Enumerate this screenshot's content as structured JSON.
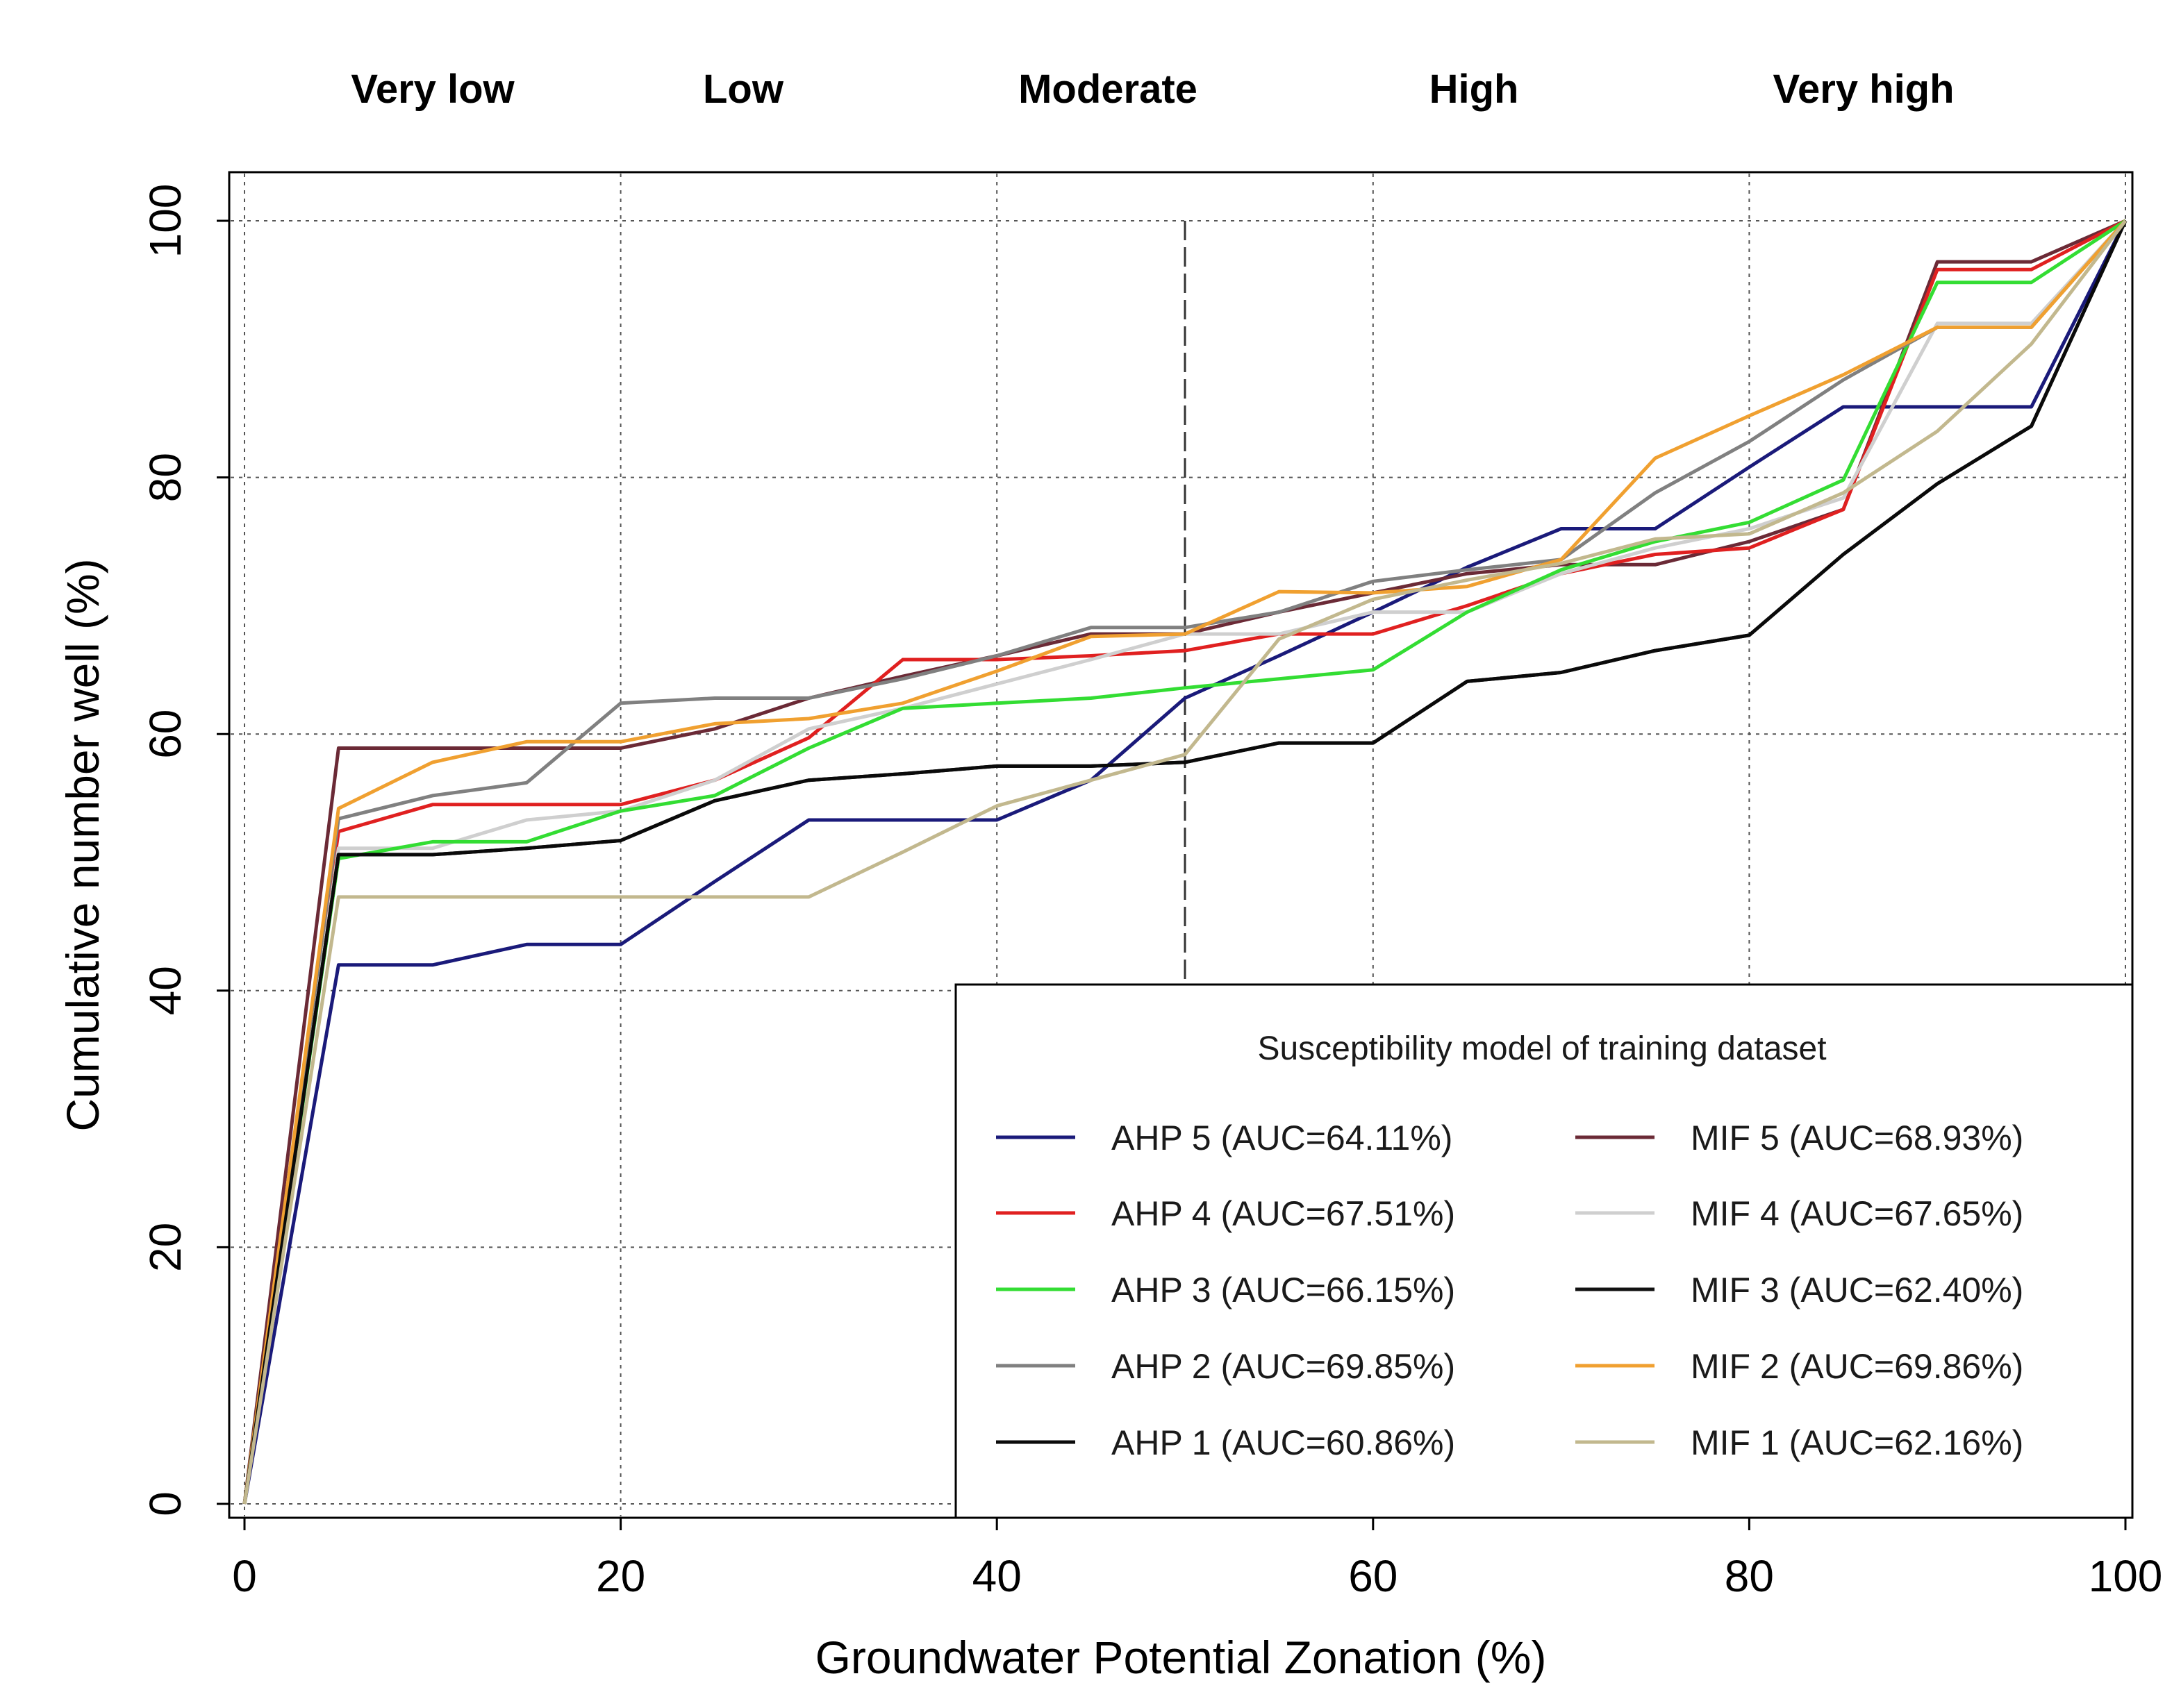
{
  "chart_data": {
    "type": "line",
    "xlabel": "Groundwater Potential Zonation (%)",
    "ylabel": "Cumulative number well (%)",
    "xlim": [
      0,
      100
    ],
    "ylim": [
      0,
      100
    ],
    "xticks": [
      0,
      20,
      40,
      60,
      80,
      100
    ],
    "yticks": [
      0,
      20,
      40,
      60,
      80,
      100
    ],
    "grid": true,
    "zones": [
      "Very low",
      "Low",
      "Moderate",
      "High",
      "Very high"
    ],
    "reference_line_x": 50,
    "legend": {
      "title": "Susceptibility model of training dataset",
      "placement": "bottom-right",
      "columns": 2
    },
    "x": [
      0,
      5,
      10,
      15,
      20,
      25,
      30,
      35,
      40,
      45,
      50,
      55,
      60,
      65,
      70,
      75,
      80,
      85,
      90,
      95,
      100
    ],
    "series": [
      {
        "name": "AHP 5 (AUC=64.11%)",
        "color": "#1a1a7a",
        "values": [
          0,
          42,
          42,
          43.6,
          43.6,
          48.5,
          53.3,
          53.3,
          53.3,
          56.4,
          62.8,
          66.1,
          69.5,
          73,
          76,
          76,
          80.8,
          85.5,
          85.5,
          85.5,
          100
        ]
      },
      {
        "name": "MIF 5 (AUC=68.93%)",
        "color": "#6b2a36",
        "values": [
          0,
          58.9,
          58.9,
          58.9,
          58.9,
          60.4,
          62.8,
          64.5,
          66.1,
          67.8,
          67.8,
          69.5,
          71,
          72.5,
          73.2,
          73.2,
          75,
          77.5,
          96.8,
          96.8,
          100
        ]
      },
      {
        "name": "AHP 4 (AUC=67.51%)",
        "color": "#e02020",
        "values": [
          0,
          52.4,
          54.5,
          54.5,
          54.5,
          56.4,
          59.7,
          65.8,
          65.8,
          66.1,
          66.5,
          67.8,
          67.8,
          70,
          72.5,
          74,
          74.5,
          77.5,
          96.2,
          96.2,
          100
        ]
      },
      {
        "name": "MIF 4 (AUC=67.65%)",
        "color": "#cfcfcf",
        "values": [
          0,
          51.1,
          51.1,
          53.3,
          54,
          56.4,
          60.4,
          62,
          63.9,
          65.8,
          67.8,
          67.8,
          69.5,
          69.5,
          72.5,
          74.5,
          76,
          78.4,
          92,
          92,
          100
        ]
      },
      {
        "name": "AHP 3 (AUC=66.15%)",
        "color": "#33dd33",
        "values": [
          0,
          50.3,
          51.6,
          51.6,
          54,
          55.2,
          58.9,
          62,
          62.4,
          62.8,
          63.6,
          64.3,
          65,
          69.5,
          72.8,
          75,
          76.5,
          79.8,
          95.2,
          95.2,
          100
        ]
      },
      {
        "name": "MIF 3 (AUC=62.40%)",
        "color": "#111111",
        "values": [
          0,
          50.6,
          50.6,
          51.1,
          51.7,
          54.8,
          56.4,
          56.9,
          57.5,
          57.5,
          57.8,
          59.3,
          59.3,
          64.1,
          64.8,
          66.5,
          67.7,
          74,
          79.5,
          84,
          100
        ]
      },
      {
        "name": "AHP 2 (AUC=69.85%)",
        "color": "#808080",
        "values": [
          0,
          53.4,
          55.2,
          56.2,
          62.4,
          62.8,
          62.8,
          64.3,
          66.1,
          68.3,
          68.3,
          69.5,
          71.9,
          72.8,
          73.6,
          78.8,
          82.8,
          87.6,
          91.7,
          91.7,
          100
        ]
      },
      {
        "name": "MIF 2 (AUC=69.86%)",
        "color": "#f0a030",
        "values": [
          0,
          54.2,
          57.8,
          59.4,
          59.4,
          60.8,
          61.2,
          62.4,
          64.9,
          67.6,
          67.8,
          71.1,
          71,
          71.5,
          73.6,
          81.5,
          84.8,
          88,
          91.7,
          91.7,
          100
        ]
      },
      {
        "name": "AHP 1 (AUC=60.86%)",
        "color": "#0a0a0a",
        "values": [
          0,
          50.6,
          50.6,
          51.1,
          51.7,
          54.8,
          56.4,
          56.9,
          57.5,
          57.5,
          57.8,
          59.3,
          59.3,
          64.1,
          64.8,
          66.5,
          67.7,
          74,
          79.5,
          84,
          100
        ]
      },
      {
        "name": "MIF 1 (AUC=62.16%)",
        "color": "#c2b88e",
        "values": [
          0,
          47.3,
          47.3,
          47.3,
          47.3,
          47.3,
          47.3,
          50.8,
          54.4,
          56.4,
          58.4,
          67.4,
          70.5,
          72,
          73.3,
          75.2,
          75.6,
          78.8,
          83.6,
          90.4,
          100
        ]
      }
    ]
  }
}
